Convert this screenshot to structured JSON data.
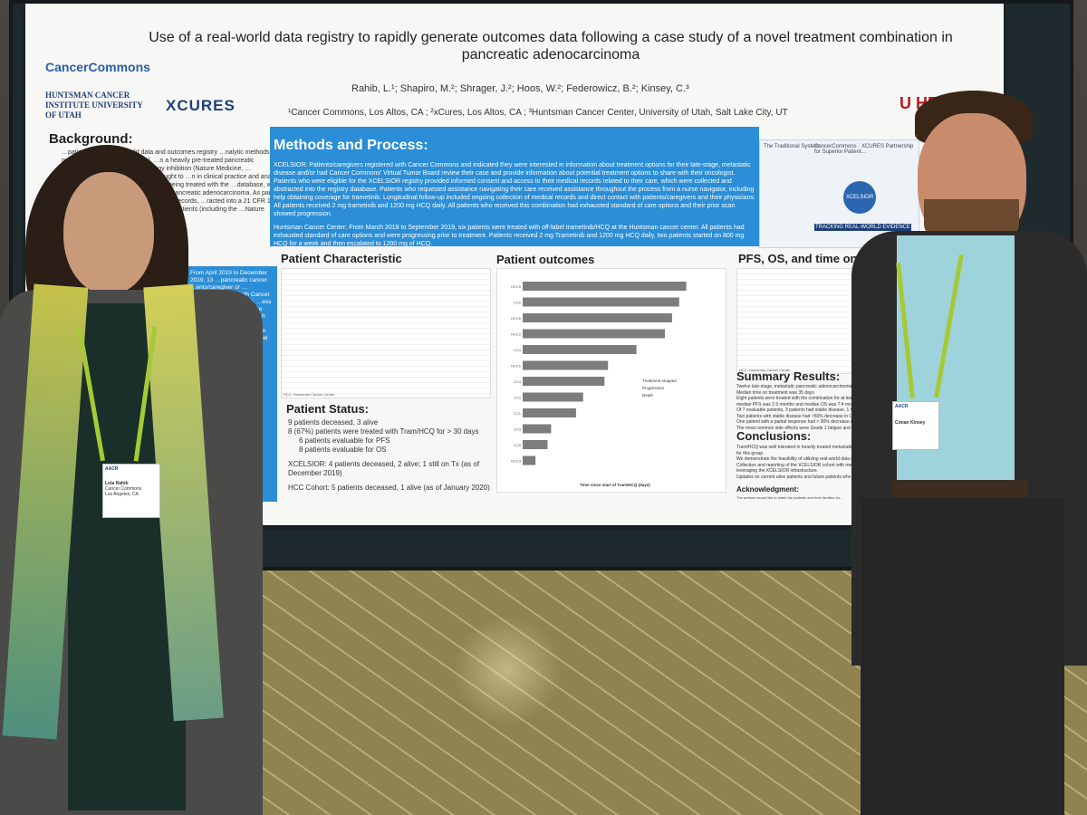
{
  "poster": {
    "title": "Use of a real-world data registry to rapidly generate outcomes data following a case study of a novel treatment combination in pancreatic adenocarcinoma",
    "authors": "Rahib, L.¹; Shapiro, M.²; Shrager, J.²; Hoos, W.²; Federowicz, B.²; Kinsey, C.³",
    "affiliations": "¹Cancer Commons, Los Altos, CA ; ²xCures, Los Altos, CA ; ³Huntsman Cancer Center, University of Utah, Salt Lake City, UT",
    "logos": {
      "cancer_commons": "CancerCommons",
      "huntsman": "HUNTSMAN CANCER INSTITUTE UNIVERSITY OF UTAH",
      "xcures": "XCURES",
      "utah": "U HE"
    },
    "background": {
      "heading": "Background:",
      "text": "…patient-centric, real-world data and outcomes registry …nalytic methods in precision oncology. Kinsey et al. …n a heavily pre-treated pancreatic adenocarcinoma …n with autophagy inhibition (Nature Medicine, …roxychloroquine (Tram/HCQ). We sought to …n in clinical practice and analyze safety and …XCELSIOR identified as being treated with the …database, we identified 6 patients that received …for pancreatic adenocarcinoma. As part of the …shared access to their full medical records, …racted into a 21 CFR 11 compliant database …and six additional patients (including the …Nature Medicine, 2019) treated with this"
    },
    "left_blue_text": "From April 2019 to December 2019, 13 …pancreatic cancer …ents/caregiver or …physicians …ered with Cancer …ns and …help with off- …ess and …in XCELSIOR. …ese patients …e approval for …h and six …treatment with …ations. …al 6 patients …man Cancer …er also …d off-label …nter (off-label)",
    "methods": {
      "heading": "Methods and Process:",
      "p1": "XCELSIOR: Patients/caregivers registered with Cancer Commons and indicated they were interested in information about treatment options for their late-stage, metastatic disease and/or had Cancer Commons' Virtual Tumor Board review their case and provide information about potential treatment options to share with their oncologist. Patients who were eligible for the XCELSIOR registry provided informed consent and access to their medical records related to their care, which were collected and abstracted into the registry database. Patients who requested assistance navigating their care received assistance throughout the process from a nurse navigator, including help obtaining coverage for trametinib. Longitudinal follow-up included ongoing collection of medical records and direct contact with patients/caregivers and their physicians. All patients received 2 mg trametinib and 1200 mg HCQ daily. All patients who received this combination had exhausted standard of care options and their prior scan showed progression.",
      "p2": "Huntsman Cancer Center: From March 2018 to September 2019, six patients were treated with off-label trametinib/HCQ at the Huntsman cancer center. All patients had exhausted standard of care options and were progressing prior to treatment. Patients received 2 mg Trametinib and 1200 mg HCQ daily, two patients started on 800 mg HCQ for a week and then escalated to 1200 mg of HCQ."
    },
    "diagram_labels": [
      "The Traditional System",
      "CancerCommons · XCURES Partnership for Superior Patient…",
      "XCELSIOR",
      "TRACKING REAL-WORLD EVIDENCE"
    ],
    "patient_characteristic": {
      "heading": "Patient Characteristic",
      "footer": "HCC: Huntsman Cancer Center"
    },
    "patient_status": {
      "heading": "Patient Status:",
      "items": [
        {
          "text": "9 patients deceased, 3 alive",
          "sub": false
        },
        {
          "text": "8 (67%) patients were treated with Tram/HCQ for > 30 days",
          "sub": false
        },
        {
          "text": "6 patients evaluable for PFS",
          "sub": true
        },
        {
          "text": "8 patients evaluable for OS",
          "sub": true
        },
        {
          "text": "XCELSIOR: 4 patients deceased, 2 alive; 1 still on Tx (as of December 2019)",
          "sub": false
        },
        {
          "text": "HCC Cohort: 5 patients deceased, 1 alive (as of January 2020)",
          "sub": false
        }
      ]
    },
    "patient_outcomes": {
      "heading": "Patient outcomes",
      "xlabel": "Time since start of Tram/HCQ (days)",
      "legend": [
        "Treatment stopped",
        "Progression",
        "Death"
      ]
    },
    "pfs": {
      "heading": "PFS, OS, and time on therapy",
      "footer": "HCC: Huntsman Cancer Center"
    },
    "summary": {
      "heading": "Summary Results:",
      "items": [
        "Twelve late-stage, metastatic pancreatic adenocarcinoma patients…",
        "Median time on treatment was 35 days",
        "Eight patients were treated with the combination for at least 30 da…",
        "median PFS was 2.9 months and median OS was 7.4 months",
        "Of 7 evaluable patients, 3 patients had stable disease, 1 had a pa…",
        "Two patients with stable disease had >50% decrease in CA 19-9",
        "One patient with a partial response had > 90% decrease in CA 19…",
        "The most common side effects were Grade 1 fatigue and Grade 1…"
      ]
    },
    "conclusions": {
      "heading": "Conclusions:",
      "items": [
        "Tram/HCQ was well tolerated in heavily treated metastatic panc… clinical benefit for this group",
        "We demonstrate the feasibility of utilizing real-world data in prec…",
        "Collection and reporting of the XCELSIOR cohort with median… months by leveraging the XCELSIOR infrastructure.",
        "Updates on current alive patients and future patients who re… time."
      ]
    },
    "acknowledgment": {
      "heading": "Acknowledgment:",
      "text": "The authors would like to thank the patients and their families for…"
    }
  },
  "badges": {
    "left": {
      "org": "AACR",
      "name": "Lola Rahib",
      "affil": "Cancer Commons",
      "city": "Los Angeles, CA"
    },
    "right": {
      "org": "AACR",
      "name": "Conan Kinsey"
    }
  },
  "colors": {
    "poster_blue": "#2b8ed6",
    "board": "#1f2a2e",
    "carpet": "#8a7f4c",
    "lanyard": "#a6c936"
  },
  "chart_data": {
    "type": "bar",
    "orientation": "horizontal",
    "title": "Patient outcomes",
    "xlabel": "Time since start of Tram/HCQ (days)",
    "xlim": [
      0,
      270
    ],
    "categories": [
      "HCC5",
      "CC6",
      "HCC6",
      "HCC2",
      "CC4",
      "HCC1",
      "CC4",
      "CC2",
      "CC1",
      "CC3",
      "CC5",
      "HCC3"
    ],
    "values": [
      230,
      220,
      210,
      200,
      160,
      120,
      115,
      85,
      75,
      40,
      35,
      18
    ],
    "legend": [
      "Treatment stopped",
      "Progression",
      "Death"
    ]
  }
}
